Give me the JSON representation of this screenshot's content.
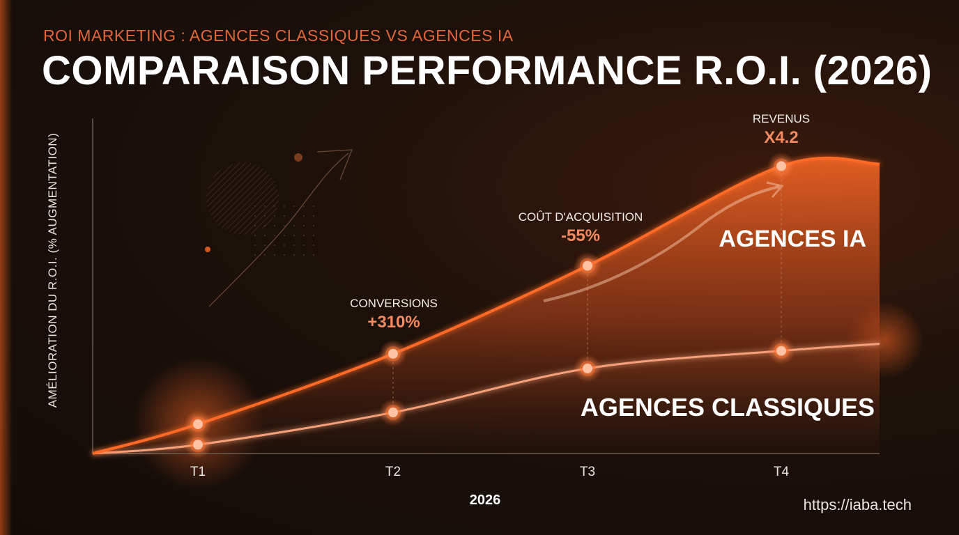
{
  "header": {
    "subtitle": "ROI MARKETING : AGENCES CLASSIQUES VS AGENCES IA",
    "title": "COMPARAISON PERFORMANCE R.O.I. (2026)"
  },
  "footer": {
    "url": "https://iaba.tech"
  },
  "colors": {
    "accent": "#ff6a26",
    "classic": "#f4a07a",
    "background": "#140d0a"
  },
  "chart_data": {
    "type": "area",
    "title": "COMPARAISON PERFORMANCE R.O.I. (2026)",
    "xlabel": "2026",
    "ylabel": "AMÉLIORATION DU R.O.I. (% AUGMENTATION)",
    "categories": [
      "T1",
      "T2",
      "T3",
      "T4"
    ],
    "ylim": [
      0,
      100
    ],
    "grid": false,
    "series": [
      {
        "name": "AGENCES IA",
        "values": [
          10,
          34,
          64,
          98
        ]
      },
      {
        "name": "AGENCES CLASSIQUES",
        "values": [
          3,
          14,
          29,
          35
        ]
      }
    ],
    "annotations": [
      {
        "label": "CONVERSIONS",
        "value": "+310%",
        "category": "T2"
      },
      {
        "label": "COÛT D'ACQUISITION",
        "value": "-55%",
        "category": "T3"
      },
      {
        "label": "REVENUS",
        "value": "X4.2",
        "category": "T4"
      }
    ]
  }
}
